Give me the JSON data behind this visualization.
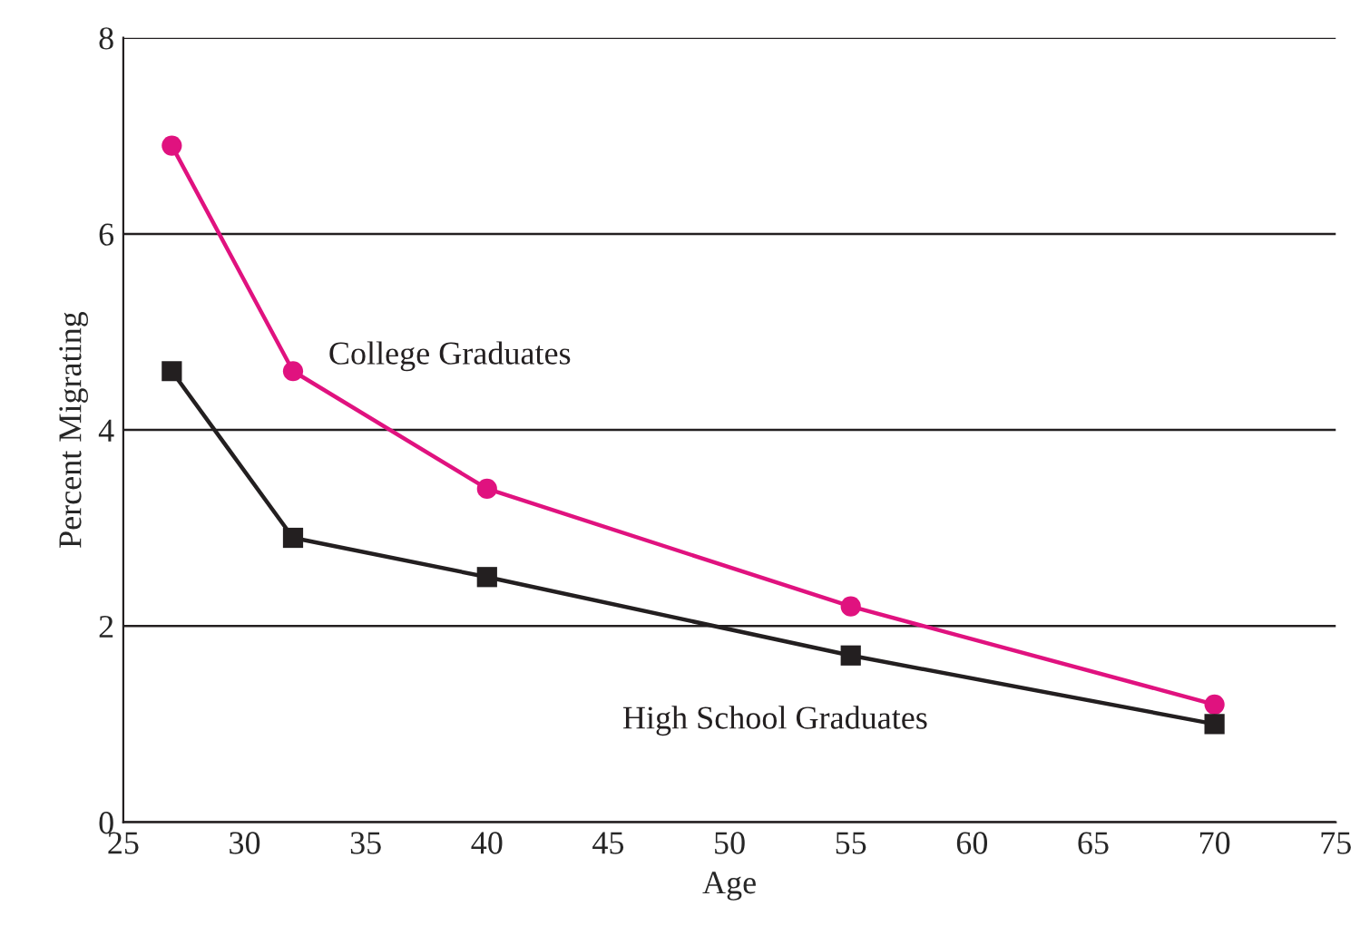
{
  "chart_data": {
    "type": "line",
    "xlabel": "Age",
    "ylabel": "Percent Migrating",
    "xlim": [
      25,
      75
    ],
    "xticks": [
      25,
      30,
      35,
      40,
      45,
      50,
      55,
      60,
      65,
      70,
      75
    ],
    "ylim": [
      0,
      8
    ],
    "yticks": [
      0,
      2,
      4,
      6,
      8
    ],
    "grid": "y",
    "legend": false,
    "series": [
      {
        "name": "College Graduates",
        "color": "#e0127f",
        "marker": "circle",
        "x": [
          27,
          32,
          40,
          55,
          70
        ],
        "values": [
          6.9,
          4.6,
          3.4,
          2.2,
          1.2
        ]
      },
      {
        "name": "High School Graduates",
        "color": "#231f20",
        "marker": "square",
        "x": [
          27,
          32,
          40,
          55,
          70
        ],
        "values": [
          4.6,
          2.9,
          2.5,
          1.7,
          1.0
        ]
      }
    ]
  }
}
